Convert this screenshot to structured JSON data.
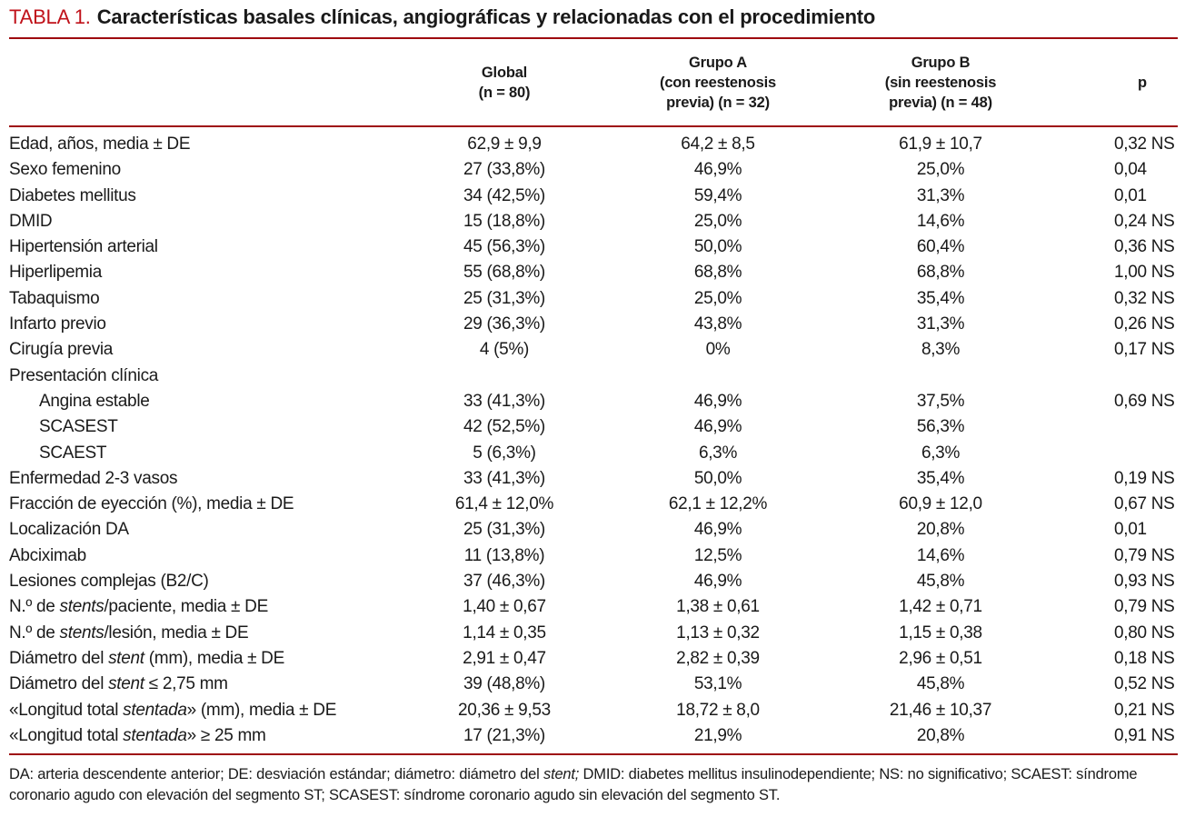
{
  "title": {
    "label": "TABLA 1.",
    "text": "Características basales clínicas, angiográficas y relacionadas con el procedimiento"
  },
  "colors": {
    "title_red": "#c0121a",
    "rule_red": "#9e0b0f",
    "text": "#1a1a1a"
  },
  "table": {
    "headers": {
      "label": "",
      "global": [
        "Global",
        "(n = 80)"
      ],
      "grupo_a": [
        "Grupo A",
        "(con reestenosis",
        "previa) (n = 32)"
      ],
      "grupo_b": [
        "Grupo B",
        "(sin reestenosis",
        "previa) (n = 48)"
      ],
      "p": "p"
    },
    "rows": [
      {
        "label": "Edad, años, media ± DE",
        "indent": false,
        "global": "62,9 ± 9,9",
        "grupo_a": "64,2 ± 8,5",
        "grupo_b": "61,9 ± 10,7",
        "p": "0,32 NS"
      },
      {
        "label": "Sexo femenino",
        "indent": false,
        "global": "27 (33,8%)",
        "grupo_a": "46,9%",
        "grupo_b": "25,0%",
        "p": "0,04"
      },
      {
        "label": "Diabetes mellitus",
        "indent": false,
        "global": "34 (42,5%)",
        "grupo_a": "59,4%",
        "grupo_b": "31,3%",
        "p": "0,01"
      },
      {
        "label": "DMID",
        "indent": false,
        "global": "15 (18,8%)",
        "grupo_a": "25,0%",
        "grupo_b": "14,6%",
        "p": "0,24 NS"
      },
      {
        "label": "Hipertensión arterial",
        "indent": false,
        "global": "45 (56,3%)",
        "grupo_a": "50,0%",
        "grupo_b": "60,4%",
        "p": "0,36 NS"
      },
      {
        "label": "Hiperlipemia",
        "indent": false,
        "global": "55 (68,8%)",
        "grupo_a": "68,8%",
        "grupo_b": "68,8%",
        "p": "1,00 NS"
      },
      {
        "label": "Tabaquismo",
        "indent": false,
        "global": "25 (31,3%)",
        "grupo_a": "25,0%",
        "grupo_b": "35,4%",
        "p": "0,32 NS"
      },
      {
        "label": "Infarto previo",
        "indent": false,
        "global": "29 (36,3%)",
        "grupo_a": "43,8%",
        "grupo_b": "31,3%",
        "p": "0,26 NS"
      },
      {
        "label": "Cirugía previa",
        "indent": false,
        "global": "4 (5%)",
        "grupo_a": "0%",
        "grupo_b": "8,3%",
        "p": "0,17 NS"
      },
      {
        "label": "Presentación clínica",
        "indent": false,
        "global": "",
        "grupo_a": "",
        "grupo_b": "",
        "p": ""
      },
      {
        "label": "Angina estable",
        "indent": true,
        "global": "33 (41,3%)",
        "grupo_a": "46,9%",
        "grupo_b": "37,5%",
        "p": "0,69 NS"
      },
      {
        "label": "SCASEST",
        "indent": true,
        "global": "42 (52,5%)",
        "grupo_a": "46,9%",
        "grupo_b": "56,3%",
        "p": ""
      },
      {
        "label": "SCAEST",
        "indent": true,
        "global": "5 (6,3%)",
        "grupo_a": "6,3%",
        "grupo_b": "6,3%",
        "p": ""
      },
      {
        "label": "Enfermedad 2-3 vasos",
        "indent": false,
        "global": "33 (41,3%)",
        "grupo_a": "50,0%",
        "grupo_b": "35,4%",
        "p": "0,19 NS"
      },
      {
        "label": "Fracción de eyección (%), media ± DE",
        "indent": false,
        "global": "61,4 ± 12,0%",
        "grupo_a": "62,1 ± 12,2%",
        "grupo_b": "60,9 ± 12,0",
        "p": "0,67 NS"
      },
      {
        "label": "Localización DA",
        "indent": false,
        "global": "25 (31,3%)",
        "grupo_a": "46,9%",
        "grupo_b": "20,8%",
        "p": "0,01"
      },
      {
        "label": "Abciximab",
        "indent": false,
        "global": "11 (13,8%)",
        "grupo_a": "12,5%",
        "grupo_b": "14,6%",
        "p": "0,79 NS"
      },
      {
        "label": "Lesiones complejas (B2/C)",
        "indent": false,
        "global": "37 (46,3%)",
        "grupo_a": "46,9%",
        "grupo_b": "45,8%",
        "p": "0,93 NS"
      },
      {
        "label": "N.º de *stents*/paciente, media ± DE",
        "indent": false,
        "global": "1,40 ± 0,67",
        "grupo_a": "1,38 ± 0,61",
        "grupo_b": "1,42 ± 0,71",
        "p": "0,79 NS"
      },
      {
        "label": "N.º de *stents*/lesión, media ± DE",
        "indent": false,
        "global": "1,14 ± 0,35",
        "grupo_a": "1,13 ± 0,32",
        "grupo_b": "1,15 ± 0,38",
        "p": "0,80 NS"
      },
      {
        "label": "Diámetro del *stent* (mm), media ± DE",
        "indent": false,
        "global": "2,91 ± 0,47",
        "grupo_a": "2,82 ± 0,39",
        "grupo_b": "2,96 ± 0,51",
        "p": "0,18 NS"
      },
      {
        "label": "Diámetro del *stent* ≤ 2,75 mm",
        "indent": false,
        "global": "39 (48,8%)",
        "grupo_a": "53,1%",
        "grupo_b": "45,8%",
        "p": "0,52 NS"
      },
      {
        "label": "«Longitud total *stentada*» (mm), media ± DE",
        "indent": false,
        "global": "20,36 ± 9,53",
        "grupo_a": "18,72 ± 8,0",
        "grupo_b": "21,46 ± 10,37",
        "p": "0,21 NS"
      },
      {
        "label": "«Longitud total *stentada*» ≥ 25 mm",
        "indent": false,
        "global": "17 (21,3%)",
        "grupo_a": "21,9%",
        "grupo_b": "20,8%",
        "p": "0,91 NS"
      }
    ]
  },
  "footnote": {
    "text": "DA: arteria descendente anterior; DE: desviación estándar; diámetro: diámetro del *stent;* DMID: diabetes mellitus insulinodependiente; NS: no significativo; SCAEST: síndrome coronario agudo con elevación del segmento ST; SCASEST: síndrome coronario agudo sin elevación del segmento ST."
  }
}
